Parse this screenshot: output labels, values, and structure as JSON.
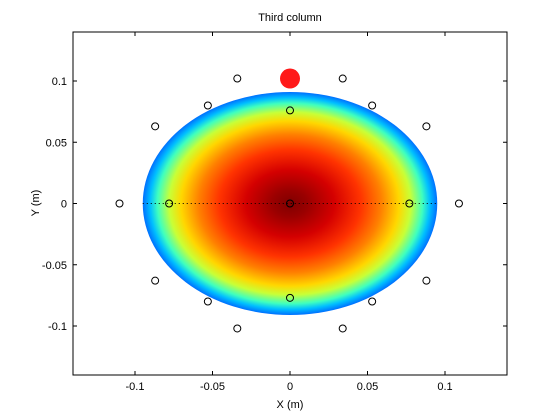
{
  "chart_data": {
    "type": "scatter",
    "title": "Third column",
    "xlabel": "X (m)",
    "ylabel": "Y (m)",
    "xlim": [
      -0.14,
      0.14
    ],
    "ylim": [
      -0.14,
      0.14
    ],
    "xticks": [
      -0.1,
      -0.05,
      0,
      0.05,
      0.1
    ],
    "xtick_labels": [
      "-0.1",
      "-0.05",
      "0",
      "0.05",
      "0.1"
    ],
    "yticks": [
      0.1,
      0.05,
      0,
      -0.05,
      -0.1
    ],
    "ytick_labels": [
      "0.1",
      "0.05",
      "0",
      "-0.05",
      "-0.1"
    ],
    "grid": false,
    "heatmap": {
      "center": [
        0,
        0
      ],
      "semi_axis_x": 0.095,
      "semi_axis_y": 0.091,
      "colormap": "jet",
      "peak_color": "#7f0000"
    },
    "reference_line": {
      "y": 0,
      "x_range": [
        -0.095,
        0.095
      ],
      "style": "dotted"
    },
    "open_markers": [
      [
        -0.034,
        0.102
      ],
      [
        0.034,
        0.102
      ],
      [
        -0.053,
        0.08
      ],
      [
        0,
        0.076
      ],
      [
        0.053,
        0.08
      ],
      [
        -0.087,
        0.063
      ],
      [
        0.088,
        0.063
      ],
      [
        -0.11,
        0
      ],
      [
        -0.078,
        0
      ],
      [
        0,
        0
      ],
      [
        0.077,
        0
      ],
      [
        0.109,
        0
      ],
      [
        -0.087,
        -0.063
      ],
      [
        0.088,
        -0.063
      ],
      [
        -0.053,
        -0.08
      ],
      [
        0,
        -0.077
      ],
      [
        0.053,
        -0.08
      ],
      [
        -0.034,
        -0.102
      ],
      [
        0.034,
        -0.102
      ]
    ],
    "highlight_marker": {
      "x": 0,
      "y": 0.102,
      "color": "#ff1a1a"
    }
  }
}
